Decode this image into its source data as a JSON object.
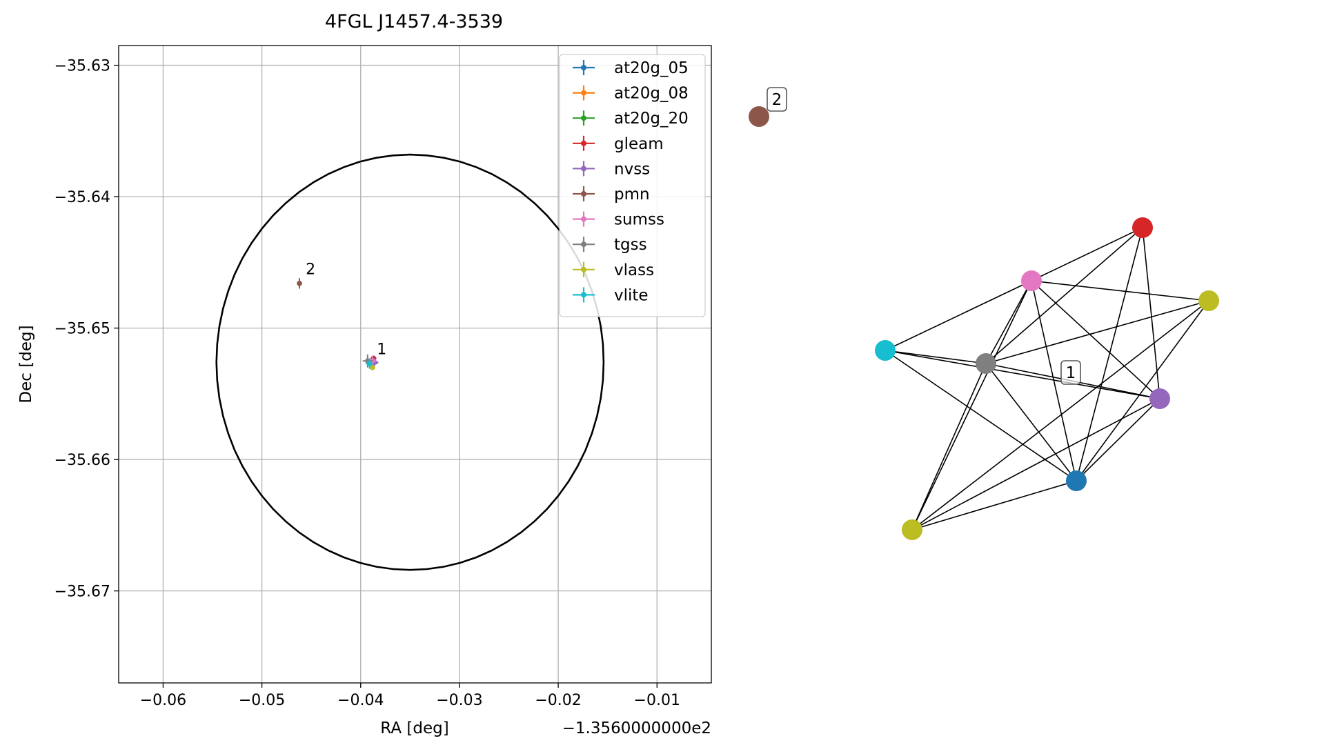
{
  "chart_data": [
    {
      "type": "scatter",
      "title": "4FGL J1457.4-3539",
      "xlabel": "RA [deg]",
      "ylabel": "Dec [deg]",
      "x_offset_label": "−1.3560000000e2",
      "xlim": [
        -0.0645,
        -0.0045
      ],
      "ylim": [
        -35.677,
        -35.6285
      ],
      "x_ticks": [
        -0.06,
        -0.05,
        -0.04,
        -0.03,
        -0.02,
        -0.01
      ],
      "x_tick_labels": [
        "−0.06",
        "−0.05",
        "−0.04",
        "−0.03",
        "−0.02",
        "−0.01"
      ],
      "y_ticks": [
        -35.63,
        -35.64,
        -35.65,
        -35.66,
        -35.67
      ],
      "y_tick_labels": [
        "−35.63",
        "−35.64",
        "−35.65",
        "−35.66",
        "−35.67"
      ],
      "grid": true,
      "legend_position": "top-right",
      "circle": {
        "center": [
          -0.035,
          -35.6526
        ],
        "rx": 0.0196,
        "ry": 0.0158,
        "color": "#000000"
      },
      "series": [
        {
          "name": "at20g_05",
          "color": "#1f77b4",
          "x": [
            -0.0388
          ],
          "y": [
            -35.6527
          ],
          "xerr": [
            0.0005
          ],
          "yerr": [
            0.0004
          ]
        },
        {
          "name": "at20g_08",
          "color": "#ff7f0e",
          "x": [
            -0.0388
          ],
          "y": [
            -35.6526
          ],
          "xerr": [
            0.0004
          ],
          "yerr": [
            0.0003
          ]
        },
        {
          "name": "at20g_20",
          "color": "#2ca02c",
          "x": [
            -0.0389
          ],
          "y": [
            -35.6528
          ],
          "xerr": [
            0.0003
          ],
          "yerr": [
            0.0003
          ]
        },
        {
          "name": "gleam",
          "color": "#d62728",
          "x": [
            -0.0387
          ],
          "y": [
            -35.6523
          ],
          "xerr": [
            0.0003
          ],
          "yerr": [
            0.0002
          ]
        },
        {
          "name": "nvss",
          "color": "#9467bd",
          "x": [
            -0.0386
          ],
          "y": [
            -35.6526
          ],
          "xerr": [
            0.0004
          ],
          "yerr": [
            0.0003
          ]
        },
        {
          "name": "pmn",
          "color": "#8c564b",
          "x": [
            -0.0462
          ],
          "y": [
            -35.6466
          ],
          "xerr": [
            0.0002
          ],
          "yerr": [
            0.0004
          ]
        },
        {
          "name": "sumss",
          "color": "#e377c2",
          "x": [
            -0.0388
          ],
          "y": [
            -35.6525
          ],
          "xerr": [
            0.0004
          ],
          "yerr": [
            0.0004
          ]
        },
        {
          "name": "tgss",
          "color": "#7f7f7f",
          "x": [
            -0.0393
          ],
          "y": [
            -35.6525
          ],
          "xerr": [
            0.0005
          ],
          "yerr": [
            0.0005
          ]
        },
        {
          "name": "vlass",
          "color": "#bcbd22",
          "x": [
            -0.0388
          ],
          "y": [
            -35.653
          ],
          "xerr": [
            0.0002
          ],
          "yerr": [
            0.0002
          ]
        },
        {
          "name": "vlite",
          "color": "#17becf",
          "x": [
            -0.0391
          ],
          "y": [
            -35.6527
          ],
          "xerr": [
            0.0004
          ],
          "yerr": [
            0.0004
          ]
        }
      ],
      "annotations": [
        {
          "text": "1",
          "x": -0.0385,
          "y": -35.652
        },
        {
          "text": "2",
          "x": -0.0457,
          "y": -35.6459
        }
      ]
    },
    {
      "type": "network",
      "nodes": [
        {
          "id": "brown",
          "color": "#8c564b",
          "label": "2"
        },
        {
          "id": "red",
          "color": "#d62728"
        },
        {
          "id": "pink",
          "color": "#e377c2"
        },
        {
          "id": "olive-right",
          "color": "#bcbd22"
        },
        {
          "id": "cyan",
          "color": "#17becf"
        },
        {
          "id": "gray",
          "color": "#7f7f7f"
        },
        {
          "id": "purple",
          "color": "#9467bd"
        },
        {
          "id": "blue",
          "color": "#1f77b4"
        },
        {
          "id": "olive-bottom",
          "color": "#bcbd22"
        }
      ],
      "edges": [
        [
          "pink",
          "red"
        ],
        [
          "pink",
          "olive-right"
        ],
        [
          "pink",
          "cyan"
        ],
        [
          "pink",
          "gray"
        ],
        [
          "pink",
          "purple"
        ],
        [
          "pink",
          "blue"
        ],
        [
          "pink",
          "olive-bottom"
        ],
        [
          "red",
          "gray"
        ],
        [
          "red",
          "purple"
        ],
        [
          "red",
          "blue"
        ],
        [
          "olive-right",
          "gray"
        ],
        [
          "olive-right",
          "blue"
        ],
        [
          "olive-right",
          "olive-bottom"
        ],
        [
          "cyan",
          "gray"
        ],
        [
          "cyan",
          "purple"
        ],
        [
          "cyan",
          "blue"
        ],
        [
          "gray",
          "purple"
        ],
        [
          "gray",
          "blue"
        ],
        [
          "gray",
          "olive-bottom"
        ],
        [
          "purple",
          "blue"
        ],
        [
          "purple",
          "olive-bottom"
        ],
        [
          "blue",
          "olive-bottom"
        ]
      ],
      "cluster_labels": [
        "1"
      ]
    }
  ]
}
